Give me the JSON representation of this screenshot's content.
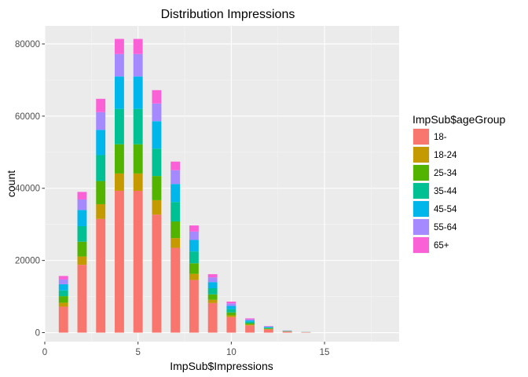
{
  "chart_data": {
    "type": "bar",
    "stacked": true,
    "title": "Distribution Impressions",
    "xlabel": "ImpSub$Impressions",
    "ylabel": "count",
    "xlim": [
      0,
      19
    ],
    "ylim": [
      -2500,
      85000
    ],
    "x_ticks": [
      0,
      5,
      10,
      15
    ],
    "x_tick_labels": [
      "0",
      "5",
      "10",
      "15"
    ],
    "y_ticks": [
      0,
      20000,
      40000,
      60000,
      80000
    ],
    "y_tick_labels": [
      "0",
      "20000",
      "40000",
      "60000",
      "80000"
    ],
    "grid": true,
    "legend_title": "ImpSub$ageGroup",
    "legend_position": "right",
    "x": [
      1,
      2,
      3,
      4,
      5,
      6,
      7,
      8,
      9,
      10,
      11,
      12,
      13,
      14
    ],
    "series": [
      {
        "name": "18-",
        "color": "#F8766D",
        "values": [
          7200,
          18800,
          31500,
          39300,
          39300,
          32700,
          23500,
          14600,
          8200,
          4300,
          2000,
          900,
          300,
          100
        ]
      },
      {
        "name": "18-24",
        "color": "#C49A00",
        "values": [
          1100,
          2300,
          4100,
          4800,
          4800,
          4000,
          2700,
          1700,
          900,
          500,
          250,
          100,
          40,
          20
        ]
      },
      {
        "name": "25-34",
        "color": "#53B400",
        "values": [
          1800,
          4100,
          6400,
          8100,
          8100,
          6700,
          4600,
          2900,
          1500,
          800,
          350,
          180,
          60,
          20
        ]
      },
      {
        "name": "35-44",
        "color": "#00C094",
        "values": [
          1600,
          4300,
          7200,
          9800,
          9800,
          7600,
          5400,
          3300,
          1700,
          900,
          400,
          200,
          60,
          20
        ]
      },
      {
        "name": "45-54",
        "color": "#00B6EB",
        "values": [
          1700,
          4500,
          7000,
          9000,
          9000,
          7600,
          5000,
          3200,
          1700,
          900,
          400,
          200,
          60,
          20
        ]
      },
      {
        "name": "55-64",
        "color": "#A58AFF",
        "values": [
          1300,
          2900,
          4900,
          6200,
          6200,
          4900,
          3800,
          2300,
          1300,
          700,
          300,
          150,
          40,
          15
        ]
      },
      {
        "name": "65+",
        "color": "#FB61D7",
        "values": [
          1000,
          2100,
          3700,
          4200,
          4200,
          3700,
          2400,
          1700,
          900,
          500,
          250,
          100,
          30,
          10
        ]
      }
    ]
  }
}
